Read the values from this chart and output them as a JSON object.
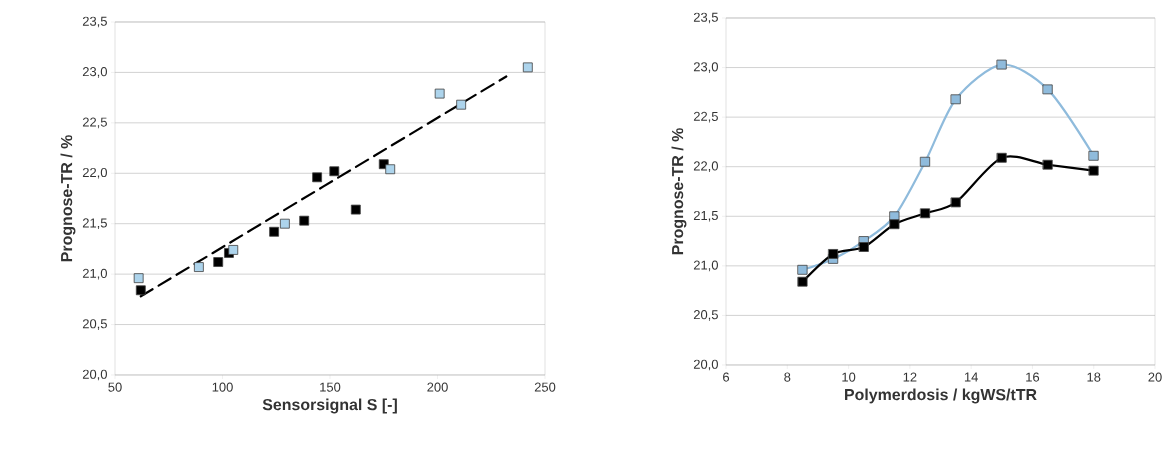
{
  "chart_data": [
    {
      "type": "scatter",
      "xlabel": "Sensorsignal S [-]",
      "ylabel": "Prognose-TR / %",
      "xlim": [
        50,
        250
      ],
      "xticks": [
        50,
        100,
        150,
        200,
        250
      ],
      "ylim": [
        20,
        23.5
      ],
      "yticks": [
        {
          "value": 20,
          "label": "20,0"
        },
        {
          "value": 20.5,
          "label": "20,5"
        },
        {
          "value": 21,
          "label": "21,0"
        },
        {
          "value": 21.5,
          "label": "21,5"
        },
        {
          "value": 22,
          "label": "22,0"
        },
        {
          "value": 22.5,
          "label": "22,5"
        },
        {
          "value": 23,
          "label": "23,0"
        },
        {
          "value": 23.5,
          "label": "23,5"
        }
      ],
      "grid": "y",
      "marker": "square",
      "series": [
        {
          "type": "line",
          "color": "#000000",
          "line_style": "dashed",
          "marker": "none",
          "x": [
            62,
            232
          ],
          "values": [
            20.78,
            22.96
          ]
        },
        {
          "color": "#000000",
          "x": [
            62,
            98,
            103,
            124,
            138,
            144,
            152,
            162,
            175
          ],
          "values": [
            20.84,
            21.12,
            21.21,
            21.42,
            21.53,
            21.96,
            22.02,
            21.64,
            22.09
          ]
        },
        {
          "color": "#add4ec",
          "x": [
            61,
            89,
            105,
            129,
            178,
            201,
            211,
            242
          ],
          "values": [
            20.96,
            21.07,
            21.24,
            21.5,
            22.04,
            22.79,
            22.68,
            23.05
          ]
        }
      ]
    },
    {
      "type": "line",
      "xlabel": "Polymerdosis / kgWS/tTR",
      "ylabel": "Prognose-TR / %",
      "xlim": [
        6,
        20
      ],
      "xticks": [
        6,
        8,
        10,
        12,
        14,
        16,
        18,
        20
      ],
      "ylim": [
        20,
        23.5
      ],
      "yticks": [
        {
          "value": 20,
          "label": "20,0"
        },
        {
          "value": 20.5,
          "label": "20,5"
        },
        {
          "value": 21,
          "label": "21,0"
        },
        {
          "value": 21.5,
          "label": "21,5"
        },
        {
          "value": 22,
          "label": "22,0"
        },
        {
          "value": 22.5,
          "label": "22,5"
        },
        {
          "value": 23,
          "label": "23,0"
        },
        {
          "value": 23.5,
          "label": "23,5"
        }
      ],
      "grid": "y",
      "marker": "square",
      "line_style": "solid",
      "series": [
        {
          "color": "#8fbbdc",
          "x": [
            8.5,
            9.5,
            10.5,
            11.5,
            12.5,
            13.5,
            15,
            16.5,
            18
          ],
          "values": [
            20.96,
            21.07,
            21.25,
            21.5,
            22.05,
            22.68,
            23.03,
            22.78,
            22.11
          ]
        },
        {
          "color": "#000000",
          "x": [
            8.5,
            9.5,
            10.5,
            11.5,
            12.5,
            13.5,
            15,
            16.5,
            18
          ],
          "values": [
            20.84,
            21.12,
            21.19,
            21.42,
            21.53,
            21.64,
            22.09,
            22.02,
            21.96
          ]
        }
      ]
    }
  ]
}
